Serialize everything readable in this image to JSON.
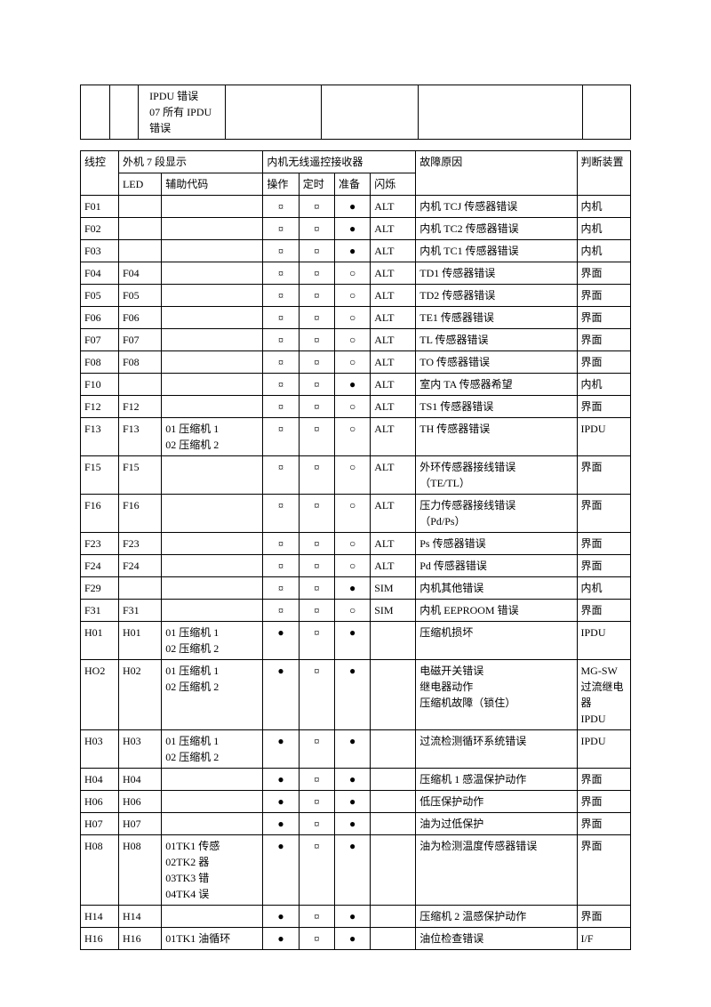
{
  "symbols": {
    "sun": "¤",
    "filled": "●",
    "hollow": "○"
  },
  "table1": {
    "cell3": "IPDU 错误\n07 所有 IPDU\n错误"
  },
  "headers": {
    "lk": "线控",
    "out7": "外机 7 段显示",
    "led": "LED",
    "aux": "辅助代码",
    "inrx": "内机无线遥控接收器",
    "op": "操作",
    "dt": "定时",
    "zb": "准备",
    "ss": "闪烁",
    "reason": "故障原因",
    "dev": "判断装置"
  },
  "rows": [
    {
      "lk": "F01",
      "led": "",
      "aux": "",
      "op": "sun",
      "dt": "sun",
      "zb": "filled",
      "ss": "ALT",
      "reason": "内机 TCJ 传感器错误",
      "dev": "内机"
    },
    {
      "lk": "F02",
      "led": "",
      "aux": "",
      "op": "sun",
      "dt": "sun",
      "zb": "filled",
      "ss": "ALT",
      "reason": "内机 TC2 传感器错误",
      "dev": "内机"
    },
    {
      "lk": "F03",
      "led": "",
      "aux": "",
      "op": "sun",
      "dt": "sun",
      "zb": "filled",
      "ss": "ALT",
      "reason": "内机 TC1  传感器错误",
      "dev": "内机"
    },
    {
      "lk": "F04",
      "led": "F04",
      "aux": "",
      "op": "sun",
      "dt": "sun",
      "zb": "hollow",
      "ss": "ALT",
      "reason": "TD1 传感器错误",
      "dev": "界面"
    },
    {
      "lk": "F05",
      "led": "F05",
      "aux": "",
      "op": "sun",
      "dt": "sun",
      "zb": "hollow",
      "ss": "ALT",
      "reason": "TD2 传感器错误",
      "dev": "界面"
    },
    {
      "lk": "F06",
      "led": "F06",
      "aux": "",
      "op": "sun",
      "dt": "sun",
      "zb": "hollow",
      "ss": "ALT",
      "reason": "TE1 传感器错误",
      "dev": "界面"
    },
    {
      "lk": "F07",
      "led": "F07",
      "aux": "",
      "op": "sun",
      "dt": "sun",
      "zb": "hollow",
      "ss": "ALT",
      "reason": "TL 传感器错误",
      "dev": "界面"
    },
    {
      "lk": "F08",
      "led": "F08",
      "aux": "",
      "op": "sun",
      "dt": "sun",
      "zb": "hollow",
      "ss": "ALT",
      "reason": "TO 传感器错误",
      "dev": "界面"
    },
    {
      "lk": "F10",
      "led": "",
      "aux": "",
      "op": "sun",
      "dt": "sun",
      "zb": "filled",
      "ss": "ALT",
      "reason": "室内 TA 传感器希望",
      "dev": "内机"
    },
    {
      "lk": "F12",
      "led": "F12",
      "aux": "",
      "op": "sun",
      "dt": "sun",
      "zb": "hollow",
      "ss": "ALT",
      "reason": "TS1 传感器错误",
      "dev": "界面"
    },
    {
      "lk": "F13",
      "led": "F13",
      "aux": "01 压缩机 1\n02 压缩机 2",
      "op": "sun",
      "dt": "sun",
      "zb": "hollow",
      "ss": "ALT",
      "reason": "TH 传感器错误",
      "dev": "IPDU"
    },
    {
      "lk": "F15",
      "led": "F15",
      "aux": "",
      "op": "sun",
      "dt": "sun",
      "zb": "hollow",
      "ss": "ALT",
      "reason": "外环传感器接线错误\n（TE/TL）",
      "dev": "界面"
    },
    {
      "lk": "F16",
      "led": "F16",
      "aux": "",
      "op": "sun",
      "dt": "sun",
      "zb": "hollow",
      "ss": "ALT",
      "reason": "压力传感器接线错误\n（Pd/Ps）",
      "dev": "界面"
    },
    {
      "lk": "F23",
      "led": "F23",
      "aux": "",
      "op": "sun",
      "dt": "sun",
      "zb": "hollow",
      "ss": "ALT",
      "reason": "Ps 传感器错误",
      "dev": "界面"
    },
    {
      "lk": "F24",
      "led": "F24",
      "aux": "",
      "op": "sun",
      "dt": "sun",
      "zb": "hollow",
      "ss": "ALT",
      "reason": "Pd 传感器错误",
      "dev": "界面"
    },
    {
      "lk": "F29",
      "led": "",
      "aux": "",
      "op": "sun",
      "dt": "sun",
      "zb": "filled",
      "ss": "SIM",
      "reason": "内机其他错误",
      "dev": "内机"
    },
    {
      "lk": "F31",
      "led": "F31",
      "aux": "",
      "op": "sun",
      "dt": "sun",
      "zb": "hollow",
      "ss": "SIM",
      "reason": "内机 EEPROOM 错误",
      "dev": "界面"
    },
    {
      "lk": "H01",
      "led": "H01",
      "aux": "01 压缩机 1\n02 压缩机 2",
      "op": "filled",
      "dt": "sun",
      "zb": "filled",
      "ss": "",
      "reason": "压缩机损坏",
      "dev": "IPDU"
    },
    {
      "lk": "HO2",
      "led": "H02",
      "aux": "01 压缩机 1\n02 压缩机 2",
      "op": "filled",
      "dt": "sun",
      "zb": "filled",
      "ss": "",
      "reason": "电磁开关错误\n继电器动作\n压缩机故障（锁住）",
      "dev": "MG-SW\n过流继电器\nIPDU"
    },
    {
      "lk": "H03",
      "led": "H03",
      "aux": "01 压缩机 1\n02 压缩机 2",
      "op": "filled",
      "dt": "sun",
      "zb": "filled",
      "ss": "",
      "reason": "过流检测循环系统错误",
      "dev": "IPDU"
    },
    {
      "lk": "H04",
      "led": "H04",
      "aux": "",
      "op": "filled",
      "dt": "sun",
      "zb": "filled",
      "ss": "",
      "reason": "压缩机 1 感温保护动作",
      "dev": "界面"
    },
    {
      "lk": "H06",
      "led": "H06",
      "aux": "",
      "op": "filled",
      "dt": "sun",
      "zb": "filled",
      "ss": "",
      "reason": "低压保护动作",
      "dev": "界面"
    },
    {
      "lk": "H07",
      "led": "H07",
      "aux": "",
      "op": "filled",
      "dt": "sun",
      "zb": "filled",
      "ss": "",
      "reason": "油为过低保护",
      "dev": "界面"
    },
    {
      "lk": "H08",
      "led": "H08",
      "aux": "01TK1 传感\n02TK2 器\n03TK3 错\n04TK4 误",
      "op": "filled",
      "dt": "sun",
      "zb": "filled",
      "ss": "",
      "reason": "油为检测温度传感器错误",
      "dev": "界面"
    },
    {
      "lk": "H14",
      "led": "H14",
      "aux": "",
      "op": "filled",
      "dt": "sun",
      "zb": "filled",
      "ss": "",
      "reason": "压缩机 2 温感保护动作",
      "dev": "界面"
    },
    {
      "lk": "H16",
      "led": "H16",
      "aux": "01TK1 油循环",
      "op": "filled",
      "dt": "sun",
      "zb": "filled",
      "ss": "",
      "reason": "油位检查错误",
      "dev": "I/F"
    }
  ]
}
